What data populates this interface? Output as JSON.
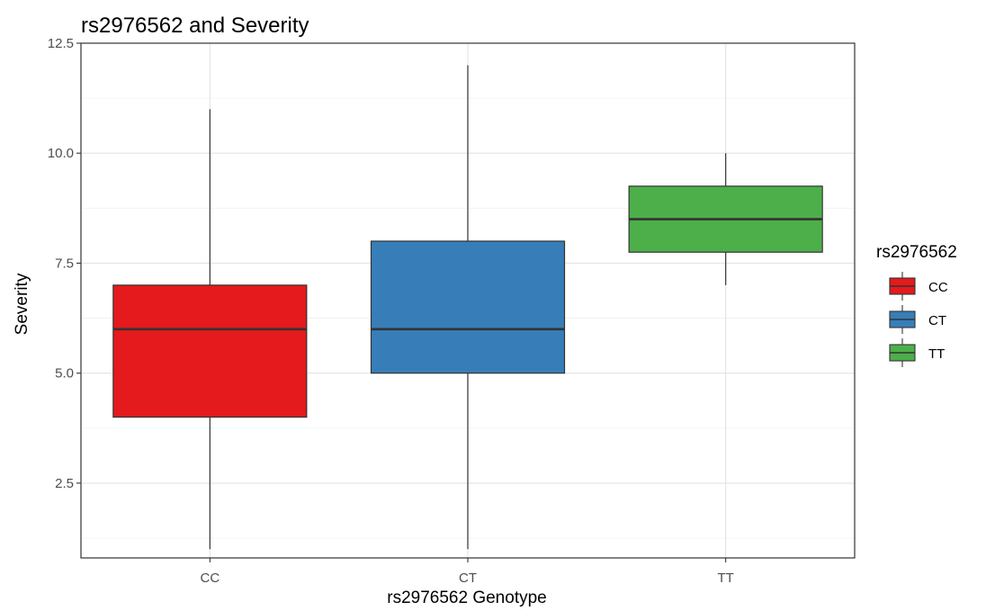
{
  "chart_data": {
    "type": "box",
    "title": "rs2976562 and Severity",
    "xlabel": "rs2976562 Genotype",
    "ylabel": "Severity",
    "ylim": [
      0.8,
      12.5
    ],
    "yticks": [
      2.5,
      5.0,
      7.5,
      10.0,
      12.5
    ],
    "yticklabels": [
      "2.5",
      "5.0",
      "7.5",
      "10.0",
      "12.5"
    ],
    "categories": [
      "CC",
      "CT",
      "TT"
    ],
    "grid": true,
    "legend": {
      "title": "rs2976562",
      "position": "right",
      "entries": [
        "CC",
        "CT",
        "TT"
      ]
    },
    "series": [
      {
        "category": "CC",
        "min": 1,
        "q1": 4,
        "median": 6,
        "q3": 7,
        "max": 11,
        "color": "#e41a1c"
      },
      {
        "category": "CT",
        "min": 1,
        "q1": 5,
        "median": 6,
        "q3": 8,
        "max": 12,
        "color": "#377eb8"
      },
      {
        "category": "TT",
        "min": 7,
        "q1": 7.75,
        "median": 8.5,
        "q3": 9.25,
        "max": 10,
        "color": "#4daf4a"
      }
    ]
  }
}
